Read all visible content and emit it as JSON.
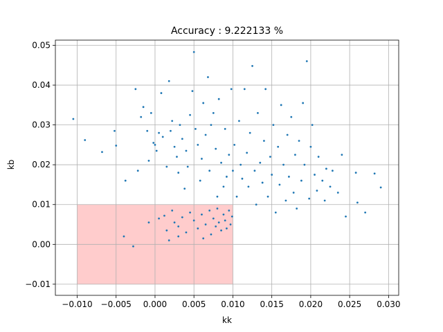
{
  "chart_data": {
    "type": "scatter",
    "title": "Accuracy : 9.222133 %",
    "xlabel": "kk",
    "ylabel": "kb",
    "xlim": [
      -0.0128,
      0.0313
    ],
    "ylim": [
      -0.0128,
      0.0513
    ],
    "grid": true,
    "xticks": [
      -0.01,
      -0.005,
      0.0,
      0.005,
      0.01,
      0.015,
      0.02,
      0.025,
      0.03
    ],
    "xtick_labels": [
      "−0.010",
      "−0.005",
      "0.000",
      "0.005",
      "0.010",
      "0.015",
      "0.020",
      "0.025",
      "0.030"
    ],
    "yticks": [
      -0.01,
      0.0,
      0.01,
      0.02,
      0.03,
      0.04,
      0.05
    ],
    "ytick_labels": [
      "−0.01",
      "0.00",
      "0.01",
      "0.02",
      "0.03",
      "0.04",
      "0.05"
    ],
    "highlight_region": {
      "x": [
        -0.01,
        0.01
      ],
      "y": [
        -0.01,
        0.01
      ],
      "color": "#ffcccc"
    },
    "point_color": "#1f77b4",
    "series": [
      {
        "values_note": "",
        "points": [
          [
            -0.0105,
            0.0315
          ],
          [
            -0.009,
            0.0262
          ],
          [
            -0.0068,
            0.0232
          ],
          [
            -0.0052,
            0.0285
          ],
          [
            -0.005,
            0.0248
          ],
          [
            -0.004,
            0.002
          ],
          [
            -0.0038,
            0.016
          ],
          [
            -0.0028,
            -0.0005
          ],
          [
            -0.0025,
            0.039
          ],
          [
            -0.0022,
            0.0185
          ],
          [
            -0.0018,
            0.032
          ],
          [
            -0.0015,
            0.0345
          ],
          [
            -0.001,
            0.0285
          ],
          [
            -0.0008,
            0.021
          ],
          [
            -0.0005,
            0.033
          ],
          [
            -0.0002,
            0.0255
          ],
          [
            0.0,
            0.025
          ],
          [
            0.0002,
            0.0235
          ],
          [
            0.0005,
            0.028
          ],
          [
            0.0008,
            0.038
          ],
          [
            0.001,
            0.027
          ],
          [
            0.0015,
            0.0195
          ],
          [
            0.0018,
            0.041
          ],
          [
            0.002,
            0.0285
          ],
          [
            0.0022,
            0.031
          ],
          [
            0.0025,
            0.0245
          ],
          [
            0.0028,
            0.022
          ],
          [
            0.003,
            0.018
          ],
          [
            0.0032,
            0.03
          ],
          [
            0.0035,
            0.0265
          ],
          [
            0.0038,
            0.014
          ],
          [
            0.004,
            0.0235
          ],
          [
            0.0042,
            0.0195
          ],
          [
            0.0045,
            0.0325
          ],
          [
            0.0048,
            0.0385
          ],
          [
            0.005,
            0.0483
          ],
          [
            0.0052,
            0.029
          ],
          [
            0.0055,
            0.025
          ],
          [
            0.0058,
            0.016
          ],
          [
            0.006,
            0.0215
          ],
          [
            0.0062,
            0.0355
          ],
          [
            0.0065,
            0.0275
          ],
          [
            0.0068,
            0.042
          ],
          [
            0.007,
            0.0185
          ],
          [
            0.0072,
            0.03
          ],
          [
            0.0075,
            0.033
          ],
          [
            0.0078,
            0.024
          ],
          [
            0.008,
            0.012
          ],
          [
            0.0082,
            0.0365
          ],
          [
            0.0085,
            0.0205
          ],
          [
            0.0088,
            0.0145
          ],
          [
            0.009,
            0.029
          ],
          [
            0.0092,
            0.017
          ],
          [
            0.0095,
            0.0225
          ],
          [
            0.0098,
            0.039
          ],
          [
            0.01,
            0.0185
          ],
          [
            0.0102,
            0.025
          ],
          [
            0.0105,
            0.012
          ],
          [
            0.0108,
            0.031
          ],
          [
            0.011,
            0.02
          ],
          [
            0.0112,
            0.0165
          ],
          [
            0.0115,
            0.039
          ],
          [
            0.0118,
            0.023
          ],
          [
            0.012,
            0.0145
          ],
          [
            0.0122,
            0.028
          ],
          [
            0.0125,
            0.0448
          ],
          [
            0.0128,
            0.0185
          ],
          [
            0.013,
            0.01
          ],
          [
            0.0132,
            0.033
          ],
          [
            0.0135,
            0.0205
          ],
          [
            0.0138,
            0.0155
          ],
          [
            0.014,
            0.026
          ],
          [
            0.0142,
            0.039
          ],
          [
            0.0145,
            0.012
          ],
          [
            0.0148,
            0.022
          ],
          [
            0.015,
            0.0175
          ],
          [
            0.0152,
            0.03
          ],
          [
            0.0155,
            0.008
          ],
          [
            0.0158,
            0.0245
          ],
          [
            0.016,
            0.015
          ],
          [
            0.0162,
            0.035
          ],
          [
            0.0165,
            0.02
          ],
          [
            0.0168,
            0.011
          ],
          [
            0.017,
            0.0275
          ],
          [
            0.0172,
            0.017
          ],
          [
            0.0175,
            0.032
          ],
          [
            0.0178,
            0.013
          ],
          [
            0.018,
            0.0225
          ],
          [
            0.0182,
            0.009
          ],
          [
            0.0185,
            0.026
          ],
          [
            0.0188,
            0.016
          ],
          [
            0.019,
            0.0355
          ],
          [
            0.0192,
            0.02
          ],
          [
            0.0195,
            0.046
          ],
          [
            0.0198,
            0.0115
          ],
          [
            0.02,
            0.0245
          ],
          [
            0.0202,
            0.03
          ],
          [
            0.0205,
            0.0175
          ],
          [
            0.0208,
            0.0135
          ],
          [
            0.021,
            0.022
          ],
          [
            0.0215,
            0.016
          ],
          [
            0.0218,
            0.011
          ],
          [
            0.022,
            0.019
          ],
          [
            0.0225,
            0.0145
          ],
          [
            0.0228,
            0.0185
          ],
          [
            0.0235,
            0.013
          ],
          [
            0.024,
            0.0225
          ],
          [
            0.0245,
            0.007
          ],
          [
            0.0258,
            0.018
          ],
          [
            0.026,
            0.0105
          ],
          [
            0.027,
            0.008
          ],
          [
            0.0282,
            0.0178
          ],
          [
            0.029,
            0.0143
          ],
          [
            0.0012,
            0.0072
          ],
          [
            0.0025,
            0.0055
          ],
          [
            0.003,
            0.0045
          ],
          [
            0.0035,
            0.0068
          ],
          [
            0.004,
            0.003
          ],
          [
            0.0045,
            0.008
          ],
          [
            0.005,
            0.006
          ],
          [
            0.0055,
            0.004
          ],
          [
            0.006,
            0.0075
          ],
          [
            0.0065,
            0.005
          ],
          [
            0.007,
            0.0085
          ],
          [
            0.0072,
            0.0025
          ],
          [
            0.0075,
            0.0065
          ],
          [
            0.0078,
            0.0045
          ],
          [
            0.008,
            0.009
          ],
          [
            0.0082,
            0.0055
          ],
          [
            0.0085,
            0.0035
          ],
          [
            0.0088,
            0.0075
          ],
          [
            0.009,
            0.006
          ],
          [
            0.0092,
            0.004
          ],
          [
            0.0095,
            0.0085
          ],
          [
            0.0097,
            0.005
          ],
          [
            0.0099,
            0.007
          ],
          [
            0.0015,
            0.0035
          ],
          [
            0.0022,
            0.0085
          ],
          [
            -0.0008,
            0.0055
          ],
          [
            0.0005,
            0.0065
          ],
          [
            0.0018,
            0.001
          ],
          [
            0.003,
            0.002
          ],
          [
            0.0062,
            0.0015
          ]
        ]
      }
    ]
  }
}
